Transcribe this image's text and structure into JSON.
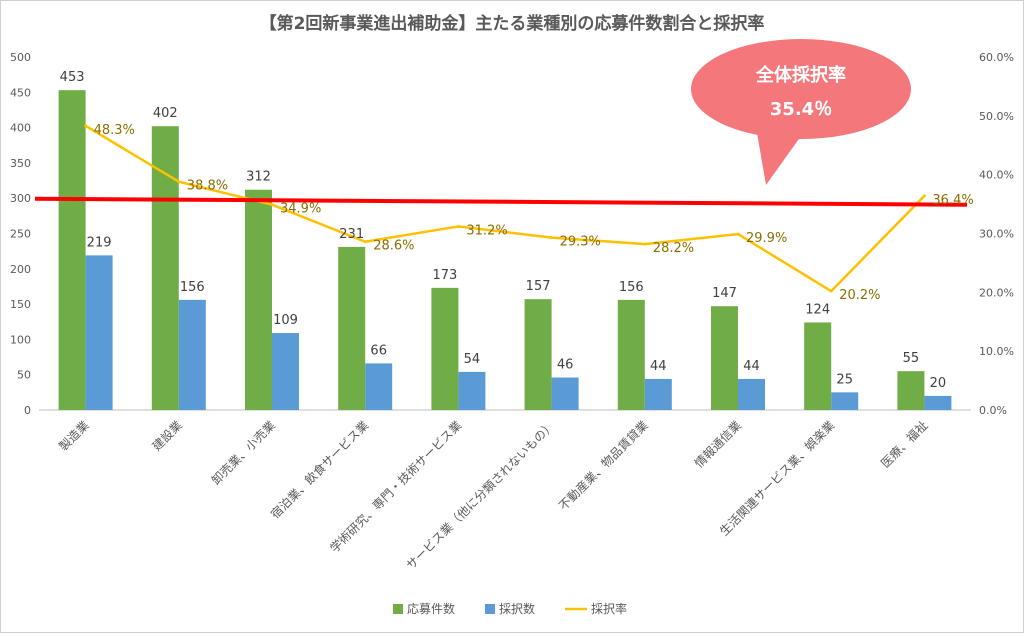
{
  "chart_data": {
    "type": "bar",
    "title": "【第2回新事業進出補助金】主たる業種別の応募件数割合と採択率",
    "categories": [
      "製造業",
      "建設業",
      "卸売業、小売業",
      "宿泊業、飲食サービス業",
      "学術研究、専門・技術サービス業",
      "サービス業（他に分類されないもの）",
      "不動産業、物品賃貸業",
      "情報通信業",
      "生活関連サービス業、娯楽業",
      "医療、福祉"
    ],
    "series": [
      {
        "name": "応募件数",
        "type": "bar",
        "axis": "left",
        "color": "#70ad47",
        "values": [
          453,
          402,
          312,
          231,
          173,
          157,
          156,
          147,
          124,
          55
        ]
      },
      {
        "name": "採択数",
        "type": "bar",
        "axis": "left",
        "color": "#5b9bd5",
        "values": [
          219,
          156,
          109,
          66,
          54,
          46,
          44,
          44,
          25,
          20
        ]
      },
      {
        "name": "採択率",
        "type": "line",
        "axis": "right",
        "color": "#ffc000",
        "values": [
          48.3,
          38.8,
          34.9,
          28.6,
          31.2,
          29.3,
          28.2,
          29.9,
          20.2,
          36.4
        ]
      }
    ],
    "rate_labels": [
      "48.3%",
      "38.8%",
      "34.9%",
      "28.6%",
      "31.2%",
      "29.3%",
      "28.2%",
      "29.9%",
      "20.2%",
      "36.4%"
    ],
    "ylim_left": [
      0,
      500
    ],
    "yticks_left": [
      "0",
      "50",
      "100",
      "150",
      "200",
      "250",
      "300",
      "350",
      "400",
      "450",
      "500"
    ],
    "ylim_right": [
      0,
      60
    ],
    "yticks_right": [
      "0.0%",
      "10.0%",
      "20.0%",
      "30.0%",
      "40.0%",
      "50.0%",
      "60.0%"
    ],
    "reference_line": {
      "value": 35.4,
      "axis": "right",
      "color": "#ff0000"
    },
    "callout": {
      "title": "全体採択率",
      "value": "35.4％",
      "color": "#f4777c"
    },
    "legend_position": "bottom",
    "grid": false
  }
}
